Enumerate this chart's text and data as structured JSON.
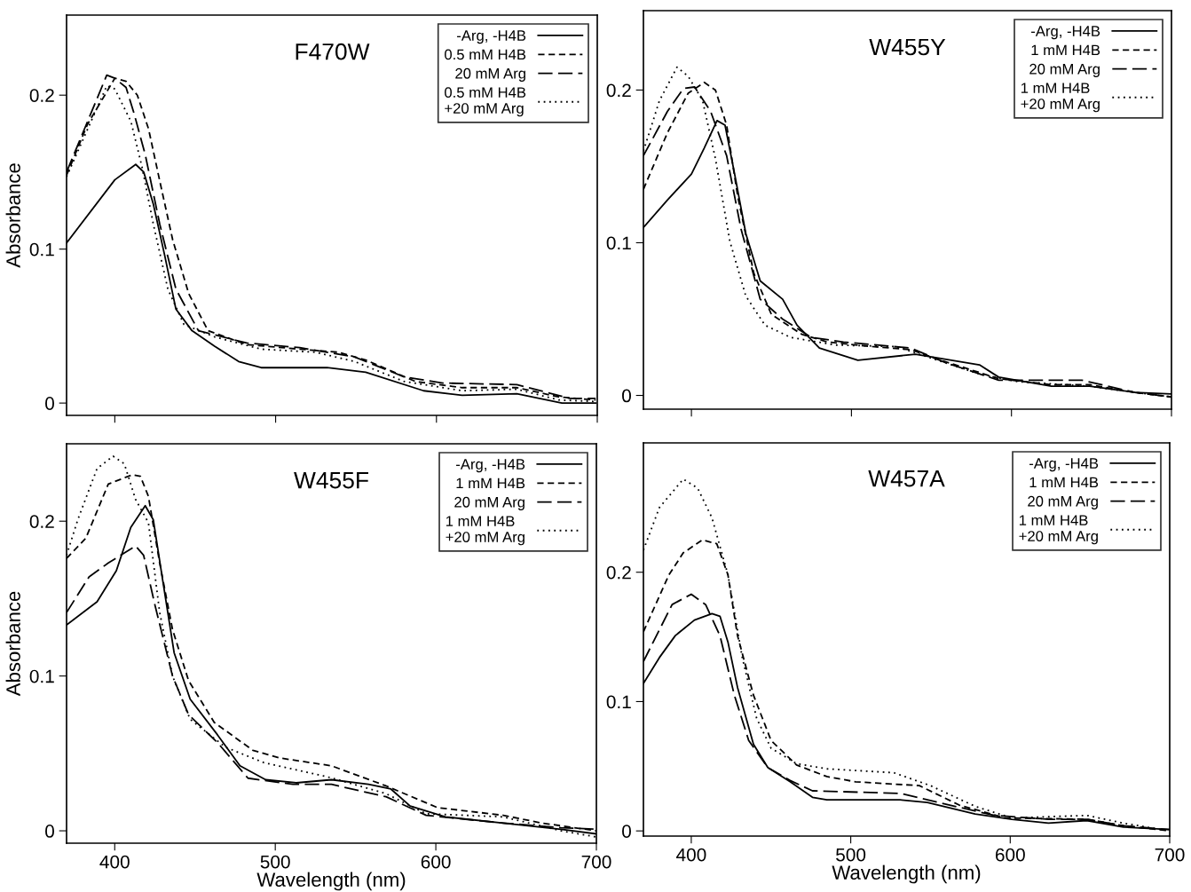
{
  "chart_data": [
    {
      "type": "line",
      "title": "F470W",
      "ylabel": "Absorbance",
      "xlim": [
        370,
        700
      ],
      "ylim": [
        -0.008,
        0.252
      ],
      "xticks": [
        400,
        500,
        600,
        700
      ],
      "yticks": [
        0,
        0.1,
        0.2
      ],
      "tick_labels": "y",
      "legend": "top right",
      "grid": false,
      "series": [
        {
          "name": "-Arg, -H4B",
          "color": "#000000",
          "line_style": "solid",
          "x": [
            370,
            400,
            413,
            418,
            424,
            431,
            438,
            448,
            462,
            477,
            491,
            532,
            556,
            592,
            616,
            650,
            664,
            678,
            699
          ],
          "values": [
            0.104,
            0.145,
            0.155,
            0.15,
            0.129,
            0.096,
            0.061,
            0.047,
            0.037,
            0.027,
            0.023,
            0.023,
            0.02,
            0.008,
            0.005,
            0.006,
            0.003,
            0.0,
            0.0
          ]
        },
        {
          "name": "0.5 mM H4B",
          "color": "#000000",
          "line_style": "dashed",
          "x": [
            370,
            383,
            400,
            407,
            414,
            421,
            428,
            436,
            446,
            458,
            482,
            515,
            539,
            556,
            587,
            616,
            650,
            676,
            699
          ],
          "values": [
            0.148,
            0.181,
            0.211,
            0.209,
            0.2,
            0.178,
            0.144,
            0.106,
            0.071,
            0.047,
            0.038,
            0.035,
            0.033,
            0.028,
            0.014,
            0.01,
            0.01,
            0.004,
            0.002
          ]
        },
        {
          "name": "20 mM Arg",
          "color": "#000000",
          "line_style": "longdashed",
          "x": [
            370,
            395,
            400,
            407,
            412,
            419,
            428,
            438,
            452,
            482,
            515,
            549,
            580,
            604,
            650,
            683,
            699
          ],
          "values": [
            0.15,
            0.213,
            0.211,
            0.205,
            0.188,
            0.161,
            0.116,
            0.074,
            0.047,
            0.039,
            0.036,
            0.03,
            0.017,
            0.013,
            0.012,
            0.003,
            0.003
          ]
        },
        {
          "name": "0.5 mM H4B\n+20 mM Arg",
          "color": "#000000",
          "line_style": "dotted",
          "x": [
            370,
            395,
            400,
            410,
            417,
            424,
            433,
            443,
            462,
            491,
            525,
            549,
            580,
            616,
            650,
            676,
            699
          ],
          "values": [
            0.147,
            0.206,
            0.204,
            0.183,
            0.153,
            0.116,
            0.074,
            0.051,
            0.043,
            0.035,
            0.033,
            0.027,
            0.014,
            0.008,
            0.009,
            0.002,
            0.001
          ]
        }
      ]
    },
    {
      "type": "line",
      "title": "W455Y",
      "xlim": [
        370,
        700
      ],
      "ylim": [
        -0.009,
        0.252
      ],
      "xticks": [
        400,
        500,
        600,
        700
      ],
      "yticks": [
        0,
        0.1,
        0.2
      ],
      "tick_labels": "y",
      "legend": "top right",
      "grid": false,
      "series": [
        {
          "name": "-Arg, -H4B",
          "color": "#000000",
          "line_style": "solid",
          "x": [
            370,
            385,
            400,
            408,
            416,
            421,
            427,
            434,
            443,
            457,
            466,
            480,
            504,
            540,
            580,
            592,
            625,
            649,
            677,
            700
          ],
          "values": [
            0.11,
            0.128,
            0.145,
            0.162,
            0.18,
            0.177,
            0.145,
            0.106,
            0.075,
            0.063,
            0.046,
            0.031,
            0.023,
            0.027,
            0.02,
            0.012,
            0.006,
            0.006,
            0.002,
            0.001
          ]
        },
        {
          "name": "1 mM H4B",
          "color": "#000000",
          "line_style": "dashed",
          "x": [
            370,
            385,
            398,
            408,
            415,
            422,
            429,
            439,
            450,
            469,
            485,
            513,
            537,
            556,
            592,
            625,
            649,
            677,
            700
          ],
          "values": [
            0.135,
            0.172,
            0.198,
            0.205,
            0.2,
            0.177,
            0.13,
            0.08,
            0.053,
            0.04,
            0.035,
            0.032,
            0.03,
            0.023,
            0.011,
            0.007,
            0.007,
            0.002,
            -0.001
          ]
        },
        {
          "name": "20 mM Arg",
          "color": "#000000",
          "line_style": "longdashed",
          "x": [
            370,
            385,
            395,
            402,
            412,
            422,
            431,
            443,
            457,
            475,
            495,
            537,
            560,
            592,
            644,
            677,
            700
          ],
          "values": [
            0.157,
            0.186,
            0.201,
            0.202,
            0.186,
            0.157,
            0.109,
            0.063,
            0.05,
            0.038,
            0.035,
            0.031,
            0.021,
            0.01,
            0.01,
            0.002,
            -0.001
          ]
        },
        {
          "name": "1 mM H4B\n+20 mM Arg",
          "color": "#000000",
          "line_style": "dotted",
          "x": [
            370,
            380,
            391,
            398,
            407,
            415,
            424,
            434,
            446,
            462,
            490,
            528,
            551,
            580,
            604,
            649,
            677,
            700
          ],
          "values": [
            0.16,
            0.193,
            0.215,
            0.209,
            0.193,
            0.155,
            0.101,
            0.065,
            0.046,
            0.038,
            0.033,
            0.032,
            0.024,
            0.014,
            0.009,
            0.006,
            0.002,
            -0.001
          ]
        }
      ]
    },
    {
      "type": "line",
      "title": "W455F",
      "xlabel": "Wavelength (nm)",
      "ylabel": "Absorbance",
      "xlim": [
        370,
        700
      ],
      "ylim": [
        -0.008,
        0.25
      ],
      "xticks": [
        400,
        500,
        600,
        700
      ],
      "yticks": [
        0,
        0.1,
        0.2
      ],
      "legend": "top right",
      "grid": false,
      "series": [
        {
          "name": "-Arg, -H4B",
          "color": "#000000",
          "line_style": "solid",
          "x": [
            370,
            389,
            401,
            410,
            419,
            424,
            430,
            437,
            447,
            464,
            478,
            494,
            513,
            535,
            558,
            572,
            584,
            606,
            642,
            678,
            700
          ],
          "values": [
            0.133,
            0.148,
            0.168,
            0.196,
            0.21,
            0.201,
            0.161,
            0.115,
            0.085,
            0.062,
            0.042,
            0.033,
            0.031,
            0.033,
            0.03,
            0.027,
            0.016,
            0.009,
            0.005,
            0.001,
            -0.002
          ]
        },
        {
          "name": "1 mM H4B",
          "color": "#000000",
          "line_style": "dashed",
          "x": [
            370,
            382,
            396,
            411,
            416,
            421,
            428,
            436,
            446,
            462,
            486,
            503,
            535,
            569,
            601,
            642,
            666,
            700
          ],
          "values": [
            0.176,
            0.189,
            0.224,
            0.23,
            0.229,
            0.216,
            0.173,
            0.13,
            0.097,
            0.07,
            0.052,
            0.047,
            0.042,
            0.029,
            0.015,
            0.01,
            0.005,
            0.0
          ]
        },
        {
          "name": "20 mM Arg",
          "color": "#000000",
          "line_style": "longdashed",
          "x": [
            370,
            384,
            396,
            413,
            418,
            425,
            436,
            446,
            464,
            483,
            511,
            535,
            569,
            594,
            642,
            678,
            700
          ],
          "values": [
            0.141,
            0.164,
            0.173,
            0.184,
            0.178,
            0.146,
            0.1,
            0.075,
            0.057,
            0.034,
            0.03,
            0.03,
            0.022,
            0.01,
            0.005,
            0.002,
            0.001
          ]
        },
        {
          "name": "1 mM H4B\n+20 mM Arg",
          "color": "#000000",
          "line_style": "dotted",
          "x": [
            370,
            377,
            389,
            399,
            406,
            413,
            421,
            428,
            436,
            447,
            469,
            493,
            532,
            569,
            594,
            642,
            678,
            700
          ],
          "values": [
            0.178,
            0.201,
            0.234,
            0.242,
            0.237,
            0.214,
            0.199,
            0.141,
            0.1,
            0.072,
            0.054,
            0.044,
            0.035,
            0.024,
            0.011,
            0.009,
            0.0,
            -0.004
          ]
        }
      ]
    },
    {
      "type": "line",
      "title": "W457A",
      "xlabel": "Wavelength (nm)",
      "xlim": [
        370,
        700
      ],
      "ylim": [
        -0.004,
        0.3
      ],
      "xticks": [
        400,
        500,
        600,
        700
      ],
      "yticks": [
        0,
        0.1,
        0.2
      ],
      "legend": "top right",
      "grid": false,
      "series": [
        {
          "name": "-Arg, -H4B",
          "color": "#000000",
          "line_style": "solid",
          "x": [
            370,
            380,
            390,
            402,
            413,
            418,
            423,
            429,
            439,
            448,
            462,
            476,
            485,
            531,
            548,
            578,
            601,
            624,
            648,
            671,
            700
          ],
          "values": [
            0.114,
            0.134,
            0.151,
            0.163,
            0.168,
            0.166,
            0.146,
            0.111,
            0.067,
            0.049,
            0.038,
            0.026,
            0.024,
            0.024,
            0.022,
            0.013,
            0.009,
            0.006,
            0.008,
            0.003,
            0.001
          ]
        },
        {
          "name": "1 mM H4B",
          "color": "#000000",
          "line_style": "dashed",
          "x": [
            370,
            386,
            395,
            407,
            416,
            423,
            429,
            439,
            450,
            466,
            485,
            503,
            543,
            568,
            597,
            648,
            671,
            700
          ],
          "values": [
            0.154,
            0.198,
            0.215,
            0.225,
            0.222,
            0.198,
            0.151,
            0.105,
            0.07,
            0.051,
            0.042,
            0.038,
            0.035,
            0.02,
            0.01,
            0.009,
            0.004,
            0.0
          ]
        },
        {
          "name": "20 mM Arg",
          "color": "#000000",
          "line_style": "longdashed",
          "x": [
            370,
            388,
            400,
            409,
            418,
            427,
            436,
            448,
            462,
            476,
            531,
            555,
            590,
            624,
            648,
            671,
            700
          ],
          "values": [
            0.131,
            0.175,
            0.183,
            0.175,
            0.151,
            0.105,
            0.07,
            0.049,
            0.039,
            0.031,
            0.029,
            0.022,
            0.012,
            0.009,
            0.009,
            0.004,
            0.001
          ]
        },
        {
          "name": "1 mM H4B\n+20 mM Arg",
          "color": "#000000",
          "line_style": "dotted",
          "x": [
            370,
            380,
            395,
            404,
            413,
            423,
            432,
            441,
            450,
            466,
            485,
            527,
            550,
            578,
            601,
            648,
            671,
            700
          ],
          "values": [
            0.217,
            0.25,
            0.272,
            0.265,
            0.242,
            0.198,
            0.134,
            0.087,
            0.064,
            0.052,
            0.048,
            0.045,
            0.035,
            0.019,
            0.01,
            0.012,
            0.006,
            0.0
          ]
        }
      ]
    }
  ]
}
